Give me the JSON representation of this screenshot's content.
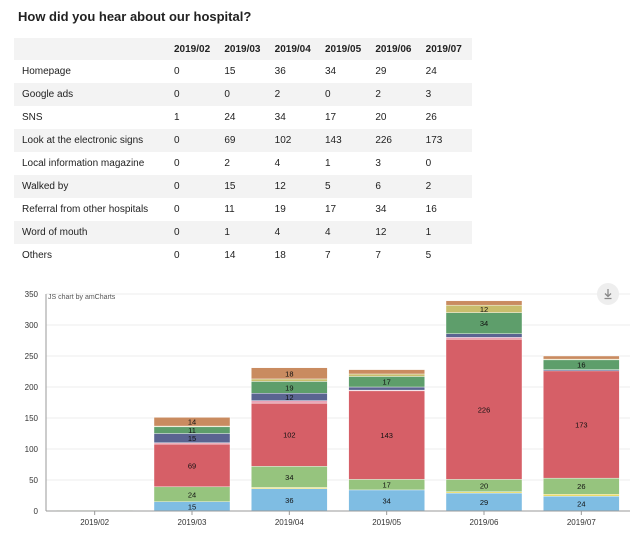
{
  "page": {
    "title": "How did you hear about our hospital?"
  },
  "table": {
    "columns": [
      "2019/02",
      "2019/03",
      "2019/04",
      "2019/05",
      "2019/06",
      "2019/07"
    ],
    "rows": [
      {
        "label": "Homepage",
        "values": [
          "0",
          "15",
          "36",
          "34",
          "29",
          "24"
        ]
      },
      {
        "label": "Google ads",
        "values": [
          "0",
          "0",
          "2",
          "0",
          "2",
          "3"
        ]
      },
      {
        "label": "SNS",
        "values": [
          "1",
          "24",
          "34",
          "17",
          "20",
          "26"
        ]
      },
      {
        "label": "Look at the electronic signs",
        "values": [
          "0",
          "69",
          "102",
          "143",
          "226",
          "173"
        ]
      },
      {
        "label": "Local information magazine",
        "values": [
          "0",
          "2",
          "4",
          "1",
          "3",
          "0"
        ]
      },
      {
        "label": "Walked by",
        "values": [
          "0",
          "15",
          "12",
          "5",
          "6",
          "2"
        ]
      },
      {
        "label": "Referral from other hospitals",
        "values": [
          "0",
          "11",
          "19",
          "17",
          "34",
          "16"
        ]
      },
      {
        "label": "Word of mouth",
        "values": [
          "0",
          "1",
          "4",
          "4",
          "12",
          "1"
        ]
      },
      {
        "label": "Others",
        "values": [
          "0",
          "14",
          "18",
          "7",
          "7",
          "5"
        ]
      }
    ]
  },
  "chart_data": {
    "type": "bar",
    "stacked": true,
    "categories": [
      "2019/02",
      "2019/03",
      "2019/04",
      "2019/05",
      "2019/06",
      "2019/07"
    ],
    "y_ticks": [
      "0",
      "50",
      "100",
      "150",
      "200",
      "250",
      "300",
      "350"
    ],
    "ylim": [
      0,
      350
    ],
    "series": [
      {
        "name": "Homepage",
        "color": "#7fbde3",
        "values": [
          0,
          15,
          36,
          34,
          29,
          24
        ]
      },
      {
        "name": "Google ads",
        "color": "#e8d85c",
        "values": [
          0,
          0,
          2,
          0,
          2,
          3
        ]
      },
      {
        "name": "SNS",
        "color": "#96c47e",
        "values": [
          1,
          24,
          34,
          17,
          20,
          26
        ]
      },
      {
        "name": "Look at the electronic signs",
        "color": "#d65f67",
        "values": [
          0,
          69,
          102,
          143,
          226,
          173
        ]
      },
      {
        "name": "Local information magazine",
        "color": "#e9a3b5",
        "values": [
          0,
          2,
          4,
          1,
          3,
          0
        ]
      },
      {
        "name": "Walked by",
        "color": "#5a6491",
        "values": [
          0,
          15,
          12,
          5,
          6,
          2
        ]
      },
      {
        "name": "Referral from other hospitals",
        "color": "#5e9e6b",
        "values": [
          0,
          11,
          19,
          17,
          34,
          16
        ]
      },
      {
        "name": "Word of mouth",
        "color": "#c9bd6c",
        "values": [
          0,
          1,
          4,
          4,
          12,
          1
        ]
      },
      {
        "name": "Others",
        "color": "#c98b60",
        "values": [
          0,
          14,
          18,
          7,
          7,
          5
        ]
      }
    ],
    "show_labels_min": 10,
    "credit": "JS chart by amCharts",
    "download_icon": "download-icon"
  }
}
